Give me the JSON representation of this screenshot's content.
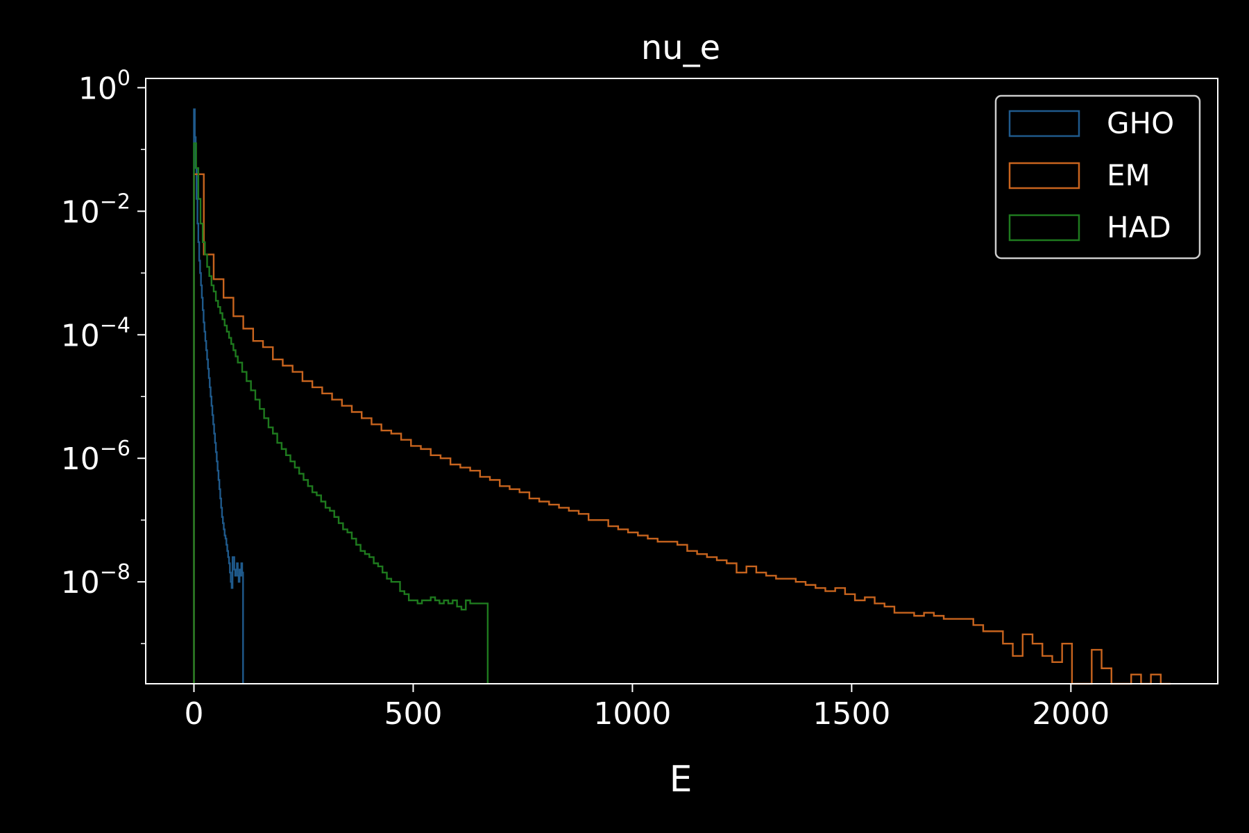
{
  "chart_data": {
    "type": "histogram",
    "title": "nu_e",
    "xlabel": "E",
    "ylabel": "",
    "xlim": [
      -110,
      2335
    ],
    "ylim_log10": [
      -9.65,
      0.15
    ],
    "yscale": "log",
    "grid": false,
    "legend_position": "top-right",
    "x_ticks": [
      {
        "value": 0,
        "label": "0"
      },
      {
        "value": 500,
        "label": "500"
      },
      {
        "value": 1000,
        "label": "1000"
      },
      {
        "value": 1500,
        "label": "1500"
      },
      {
        "value": 2000,
        "label": "2000"
      }
    ],
    "y_ticks": [
      {
        "exp": 0,
        "base": "10",
        "sup": "0"
      },
      {
        "exp": -2,
        "base": "10",
        "sup": "−2"
      },
      {
        "exp": -4,
        "base": "10",
        "sup": "−4"
      },
      {
        "exp": -6,
        "base": "10",
        "sup": "−6"
      },
      {
        "exp": -8,
        "base": "10",
        "sup": "−8"
      }
    ],
    "series": [
      {
        "name": "GHO",
        "color": "#1f5a8c",
        "x": [
          0,
          2,
          4,
          6,
          8,
          10,
          12,
          14,
          16,
          18,
          20,
          22,
          24,
          26,
          28,
          30,
          32,
          34,
          36,
          38,
          40,
          42,
          44,
          46,
          48,
          50,
          52,
          54,
          56,
          58,
          60,
          62,
          64,
          66,
          68,
          70,
          72,
          74,
          76,
          78,
          80,
          82,
          84,
          86,
          88,
          90,
          92,
          94,
          96,
          98,
          100,
          102,
          104,
          106,
          108,
          110,
          112
        ],
        "log10_y": [
          -0.35,
          -0.8,
          -1.3,
          -1.8,
          -2.2,
          -2.5,
          -2.8,
          -3.0,
          -3.2,
          -3.4,
          -3.6,
          -3.8,
          -3.95,
          -4.1,
          -4.25,
          -4.4,
          -4.55,
          -4.7,
          -4.85,
          -5.0,
          -5.15,
          -5.3,
          -5.45,
          -5.6,
          -5.75,
          -5.9,
          -6.05,
          -6.2,
          -6.35,
          -6.5,
          -6.65,
          -6.8,
          -6.95,
          -7.05,
          -7.15,
          -7.25,
          -7.3,
          -7.4,
          -7.5,
          -7.6,
          -7.7,
          -7.85,
          -8.0,
          -8.1,
          -7.6,
          -7.6,
          -7.8,
          -7.9,
          -7.8,
          -7.7,
          -7.9,
          -8.0,
          -7.8,
          -7.9,
          -7.7,
          -7.85,
          null
        ]
      },
      {
        "name": "EM",
        "color": "#c8641e",
        "x": [
          0,
          22.5,
          45,
          67.5,
          90,
          112.5,
          135,
          157.5,
          180,
          202.5,
          225,
          247.5,
          270,
          292.5,
          315,
          337.5,
          360,
          382.5,
          405,
          427.5,
          450,
          472.5,
          495,
          517.5,
          540,
          562.5,
          585,
          607.5,
          630,
          652.5,
          675,
          697.5,
          720,
          742.5,
          765,
          787.5,
          810,
          832.5,
          855,
          877.5,
          900,
          922.5,
          945,
          967.5,
          990,
          1012.5,
          1035,
          1057.5,
          1080,
          1102.5,
          1125,
          1147.5,
          1170,
          1192.5,
          1215,
          1237.5,
          1260,
          1282.5,
          1305,
          1327.5,
          1350,
          1372.5,
          1395,
          1417.5,
          1440,
          1462.5,
          1485,
          1507.5,
          1530,
          1552.5,
          1575,
          1597.5,
          1620,
          1642.5,
          1665,
          1687.5,
          1710,
          1732.5,
          1755,
          1777.5,
          1800,
          1822.5,
          1845,
          1867.5,
          1890,
          1912.5,
          1935,
          1957.5,
          1980,
          2002.5,
          2025,
          2047.5,
          2070,
          2092.5,
          2115,
          2137.5,
          2160,
          2182.5,
          2205,
          2227.5
        ],
        "log10_y": [
          -1.4,
          -2.7,
          -3.1,
          -3.4,
          -3.7,
          -3.9,
          -4.1,
          -4.2,
          -4.4,
          -4.5,
          -4.6,
          -4.75,
          -4.85,
          -4.95,
          -5.05,
          -5.15,
          -5.25,
          -5.35,
          -5.45,
          -5.55,
          -5.6,
          -5.7,
          -5.8,
          -5.85,
          -5.95,
          -6.0,
          -6.1,
          -6.15,
          -6.2,
          -6.3,
          -6.35,
          -6.45,
          -6.5,
          -6.55,
          -6.65,
          -6.7,
          -6.75,
          -6.8,
          -6.85,
          -6.9,
          -7.0,
          -7.0,
          -7.1,
          -7.15,
          -7.2,
          -7.25,
          -7.3,
          -7.35,
          -7.35,
          -7.4,
          -7.5,
          -7.55,
          -7.6,
          -7.65,
          -7.7,
          -7.85,
          -7.75,
          -7.85,
          -7.9,
          -7.95,
          -7.95,
          -8.0,
          -8.05,
          -8.1,
          -8.15,
          -8.1,
          -8.2,
          -8.3,
          -8.25,
          -8.35,
          -8.4,
          -8.5,
          -8.5,
          -8.55,
          -8.5,
          -8.55,
          -8.6,
          -8.6,
          -8.6,
          -8.7,
          -8.8,
          -8.8,
          -9.0,
          -9.2,
          -8.85,
          -9.0,
          -9.2,
          -9.3,
          -9.0,
          -9.65,
          -9.65,
          -9.1,
          -9.4,
          -9.7,
          -9.65,
          -9.5,
          -9.65,
          -9.5,
          -9.65,
          -9.5
        ]
      },
      {
        "name": "HAD",
        "color": "#1e7a1e",
        "x": [
          0,
          5,
          10,
          15,
          20,
          25,
          30,
          35,
          40,
          45,
          50,
          55,
          60,
          65,
          70,
          75,
          80,
          85,
          90,
          95,
          100,
          110,
          120,
          130,
          140,
          150,
          160,
          170,
          180,
          190,
          200,
          210,
          220,
          230,
          240,
          250,
          260,
          270,
          280,
          290,
          300,
          310,
          320,
          330,
          340,
          350,
          360,
          370,
          380,
          390,
          400,
          410,
          420,
          430,
          440,
          450,
          460,
          470,
          480,
          490,
          500,
          510,
          520,
          530,
          540,
          550,
          560,
          570,
          580,
          590,
          600,
          610,
          620,
          630,
          640,
          650,
          660,
          670
        ],
        "log10_y": [
          -0.9,
          -1.3,
          -1.8,
          -2.2,
          -2.5,
          -2.7,
          -2.9,
          -3.05,
          -3.2,
          -3.3,
          -3.45,
          -3.55,
          -3.65,
          -3.75,
          -3.85,
          -3.95,
          -4.05,
          -4.15,
          -4.25,
          -4.35,
          -4.45,
          -4.6,
          -4.75,
          -4.9,
          -5.05,
          -5.2,
          -5.35,
          -5.5,
          -5.6,
          -5.75,
          -5.85,
          -5.95,
          -6.05,
          -6.15,
          -6.25,
          -6.35,
          -6.45,
          -6.55,
          -6.6,
          -6.7,
          -6.8,
          -6.85,
          -6.95,
          -7.05,
          -7.15,
          -7.2,
          -7.3,
          -7.4,
          -7.5,
          -7.55,
          -7.6,
          -7.7,
          -7.75,
          -7.85,
          -7.95,
          -8.0,
          -8.0,
          -8.15,
          -8.2,
          -8.3,
          -8.3,
          -8.35,
          -8.3,
          -8.3,
          -8.25,
          -8.3,
          -8.35,
          -8.3,
          -8.35,
          -8.3,
          -8.4,
          -8.45,
          -8.3,
          -8.35,
          -8.35,
          -8.35,
          -8.35,
          null
        ]
      }
    ]
  }
}
